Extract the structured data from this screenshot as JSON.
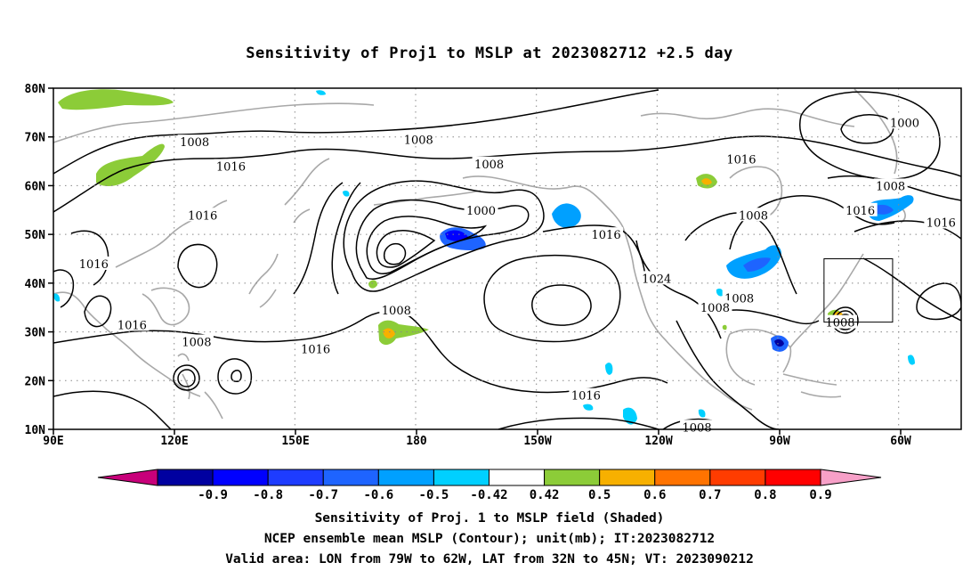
{
  "title": "Sensitivity of Proj1 to MSLP at 2023082712 +2.5 day",
  "map": {
    "lat_labels": [
      "80N",
      "70N",
      "60N",
      "50N",
      "40N",
      "30N",
      "20N",
      "10N"
    ],
    "lon_labels": [
      "90E",
      "120E",
      "150E",
      "180",
      "150W",
      "120W",
      "90W",
      "60W"
    ],
    "lon_range": [
      90,
      315
    ],
    "lat_range": [
      10,
      80
    ],
    "grid_lines": true,
    "grid_style": "dotted",
    "valid_box": {
      "lon": [
        281,
        298
      ],
      "lat": [
        32,
        45
      ]
    }
  },
  "contours": {
    "unit": "mb",
    "labels": [
      {
        "text": "1008",
        "lon": 125,
        "lat": 69
      },
      {
        "text": "1008",
        "lon": 180.5,
        "lat": 69.5
      },
      {
        "text": "1016",
        "lon": 134,
        "lat": 64
      },
      {
        "text": "1008",
        "lon": 198,
        "lat": 64.5
      },
      {
        "text": "1016",
        "lon": 260.5,
        "lat": 65.5
      },
      {
        "text": "1000",
        "lon": 301,
        "lat": 73
      },
      {
        "text": "1008",
        "lon": 297.5,
        "lat": 60
      },
      {
        "text": "1016",
        "lon": 127,
        "lat": 54
      },
      {
        "text": "1000",
        "lon": 196,
        "lat": 55
      },
      {
        "text": "1008",
        "lon": 263.5,
        "lat": 54
      },
      {
        "text": "1016",
        "lon": 290,
        "lat": 55
      },
      {
        "text": "1016",
        "lon": 227,
        "lat": 50
      },
      {
        "text": "1016",
        "lon": 310,
        "lat": 52.5
      },
      {
        "text": "1016",
        "lon": 100,
        "lat": 44
      },
      {
        "text": "1024",
        "lon": 239.5,
        "lat": 41
      },
      {
        "text": "1008",
        "lon": 260,
        "lat": 37
      },
      {
        "text": "1008",
        "lon": 175,
        "lat": 34.5
      },
      {
        "text": "1008",
        "lon": 254,
        "lat": 35
      },
      {
        "text": "1016",
        "lon": 109.5,
        "lat": 31.5
      },
      {
        "text": "1008",
        "lon": 285,
        "lat": 32
      },
      {
        "text": "1008",
        "lon": 125.5,
        "lat": 28
      },
      {
        "text": "1016",
        "lon": 155,
        "lat": 26.5
      },
      {
        "text": "1016",
        "lon": 222,
        "lat": 17
      },
      {
        "text": "1008",
        "lon": 249.5,
        "lat": 10.5
      }
    ]
  },
  "colorbar": {
    "labels": [
      "-0.9",
      "-0.8",
      "-0.7",
      "-0.6",
      "-0.5",
      "-0.42",
      "0.42",
      "0.5",
      "0.6",
      "0.7",
      "0.8",
      "0.9"
    ],
    "colors": [
      "#c8007a",
      "#0000a0",
      "#0000ff",
      "#1e3cff",
      "#1e64ff",
      "#00a0ff",
      "#00d0ff",
      "#ffffff",
      "#8ccc38",
      "#f7b000",
      "#ff7300",
      "#ff3c00",
      "#ff0000",
      "#f7a0c8"
    ]
  },
  "captions": [
    "Sensitivity of Proj. 1 to MSLP field (Shaded)",
    "NCEP ensemble mean MSLP (Contour); unit(mb); IT:2023082712",
    "Valid area: LON from 79W to 62W, LAT from 32N to 45N; VT: 2023090212"
  ]
}
